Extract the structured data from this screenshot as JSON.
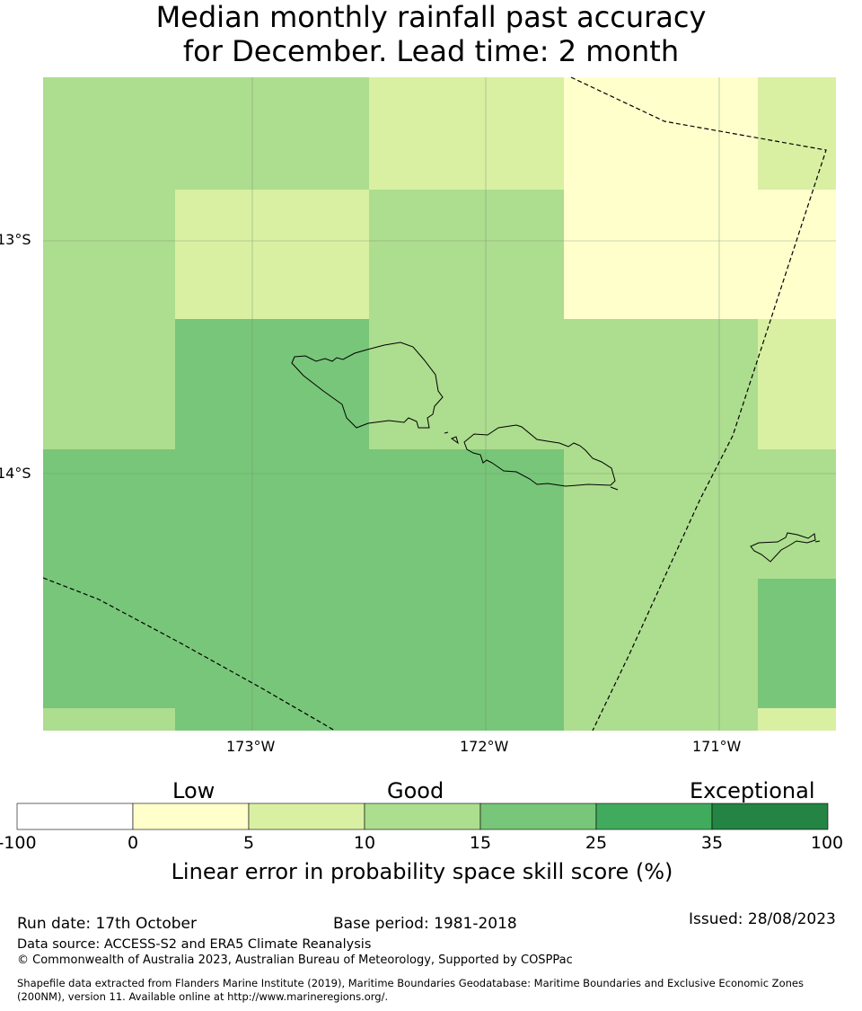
{
  "title_line1": "Median monthly rainfall past accuracy",
  "title_line2": "for December. Lead time: 2 month",
  "map": {
    "lat_labels": [
      "13°S",
      "14°S"
    ],
    "lon_labels": [
      "173°W",
      "172°W",
      "171°W"
    ],
    "colors": {
      "c1": "#ffffcc",
      "c2": "#d9f0a3",
      "c3": "#addd8e",
      "c4": "#78c679",
      "c5": "#41ab5d",
      "c6": "#238443",
      "c0": "#ffffff"
    },
    "grid_rows": [
      [
        "c3",
        "c3",
        "c2",
        "c1",
        "c2"
      ],
      [
        "c3",
        "c2",
        "c3",
        "c1",
        "c1"
      ],
      [
        "c3",
        "c4",
        "c3",
        "c3",
        "c2"
      ],
      [
        "c4",
        "c4",
        "c4",
        "c3",
        "c3"
      ],
      [
        "c4",
        "c4",
        "c4",
        "c3",
        "c4"
      ],
      [
        "c3",
        "c4",
        "c4",
        "c3",
        "c2"
      ]
    ]
  },
  "legend": {
    "categories": [
      "Low",
      "Good",
      "Exceptional"
    ],
    "ticks": [
      "-100",
      "0",
      "5",
      "10",
      "15",
      "25",
      "35",
      "100"
    ],
    "bins": [
      "c0",
      "c1",
      "c2",
      "c3",
      "c4",
      "c5",
      "c6"
    ],
    "label": "Linear error in probability space skill score (%)"
  },
  "footer": {
    "run_date": "Run date: 17th October",
    "base_period": "Base period: 1981-2018",
    "issued": "Issued: 28/08/2023",
    "data_source": "Data source: ACCESS-S2 and ERA5 Climate Reanalysis",
    "copyright": "© Commonwealth of Australia 2023, Australian Bureau of Meteorology, Supported by COSPPac",
    "shapefile_line1": "Shapefile data extracted from Flanders Marine Institute (2019), Maritime Boundaries Geodatabase: Maritime Boundaries and Exclusive Economic Zones",
    "shapefile_line2": "(200NM), version 11. Available online at http://www.marineregions.org/."
  }
}
